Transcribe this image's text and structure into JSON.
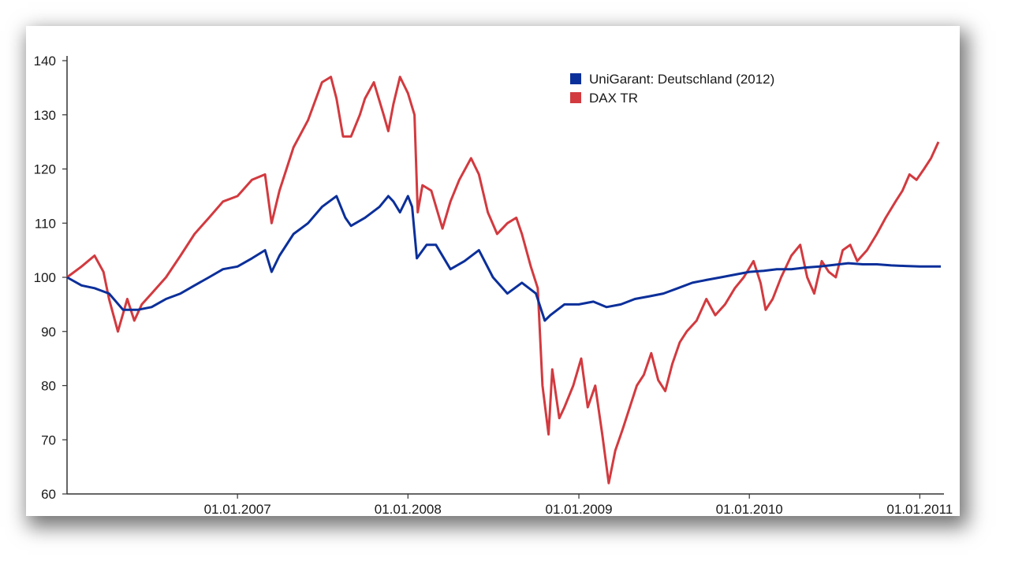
{
  "colors": {
    "unigarant": "#0b2f9a",
    "dax": "#d23a3f",
    "axis": "#333333"
  },
  "chart_data": {
    "type": "line",
    "title": "",
    "xlabel": "",
    "ylabel": "",
    "ylim": [
      60,
      140
    ],
    "xlim": [
      "2006-01-01",
      "2011-02-15"
    ],
    "grid": false,
    "legend_position": "top-right",
    "yticks": [
      60,
      70,
      80,
      90,
      100,
      110,
      120,
      130,
      140
    ],
    "xticks": [
      {
        "label": "01.01.2007",
        "date": "2007-01-01"
      },
      {
        "label": "01.01.2008",
        "date": "2008-01-01"
      },
      {
        "label": "01.01.2009",
        "date": "2009-01-01"
      },
      {
        "label": "01.01.2010",
        "date": "2010-01-01"
      },
      {
        "label": "01.01.2011",
        "date": "2011-01-01"
      }
    ],
    "series": [
      {
        "name": "UniGarant: Deutschland (2012)",
        "color": "#0b2f9a",
        "points": [
          [
            "2006-01-01",
            100
          ],
          [
            "2006-02-01",
            98.5
          ],
          [
            "2006-03-01",
            98
          ],
          [
            "2006-04-01",
            97
          ],
          [
            "2006-05-01",
            94
          ],
          [
            "2006-06-01",
            94
          ],
          [
            "2006-07-01",
            94.5
          ],
          [
            "2006-08-01",
            96
          ],
          [
            "2006-09-01",
            97
          ],
          [
            "2006-10-01",
            98.5
          ],
          [
            "2006-11-01",
            100
          ],
          [
            "2006-12-01",
            101.5
          ],
          [
            "2007-01-01",
            102
          ],
          [
            "2007-02-01",
            103.5
          ],
          [
            "2007-03-01",
            105
          ],
          [
            "2007-03-15",
            101
          ],
          [
            "2007-04-01",
            104
          ],
          [
            "2007-05-01",
            108
          ],
          [
            "2007-06-01",
            110
          ],
          [
            "2007-07-01",
            113
          ],
          [
            "2007-08-01",
            115
          ],
          [
            "2007-08-20",
            111
          ],
          [
            "2007-09-01",
            109.5
          ],
          [
            "2007-10-01",
            111
          ],
          [
            "2007-11-01",
            113
          ],
          [
            "2007-11-20",
            115
          ],
          [
            "2007-12-01",
            114
          ],
          [
            "2007-12-15",
            112
          ],
          [
            "2008-01-01",
            115
          ],
          [
            "2008-01-10",
            113
          ],
          [
            "2008-01-20",
            103.5
          ],
          [
            "2008-02-10",
            106
          ],
          [
            "2008-03-01",
            106
          ],
          [
            "2008-04-01",
            101.5
          ],
          [
            "2008-05-01",
            103
          ],
          [
            "2008-06-01",
            105
          ],
          [
            "2008-07-01",
            100
          ],
          [
            "2008-08-01",
            97
          ],
          [
            "2008-09-01",
            99
          ],
          [
            "2008-10-01",
            97
          ],
          [
            "2008-10-20",
            92
          ],
          [
            "2008-11-01",
            93
          ],
          [
            "2008-12-01",
            95
          ],
          [
            "2009-01-01",
            95
          ],
          [
            "2009-02-01",
            95.5
          ],
          [
            "2009-03-01",
            94.5
          ],
          [
            "2009-04-01",
            95
          ],
          [
            "2009-05-01",
            96
          ],
          [
            "2009-06-01",
            96.5
          ],
          [
            "2009-07-01",
            97
          ],
          [
            "2009-08-01",
            98
          ],
          [
            "2009-09-01",
            99
          ],
          [
            "2009-10-01",
            99.5
          ],
          [
            "2009-11-01",
            100
          ],
          [
            "2009-12-01",
            100.5
          ],
          [
            "2010-01-01",
            101
          ],
          [
            "2010-02-01",
            101.2
          ],
          [
            "2010-03-01",
            101.5
          ],
          [
            "2010-04-01",
            101.5
          ],
          [
            "2010-05-01",
            101.8
          ],
          [
            "2010-06-01",
            102
          ],
          [
            "2010-07-01",
            102.3
          ],
          [
            "2010-08-01",
            102.6
          ],
          [
            "2010-09-01",
            102.4
          ],
          [
            "2010-10-01",
            102.4
          ],
          [
            "2010-11-01",
            102.2
          ],
          [
            "2010-12-01",
            102.1
          ],
          [
            "2011-01-01",
            102
          ],
          [
            "2011-02-15",
            102
          ]
        ]
      },
      {
        "name": "DAX TR",
        "color": "#d23a3f",
        "points": [
          [
            "2006-01-01",
            100
          ],
          [
            "2006-02-01",
            102
          ],
          [
            "2006-03-01",
            104
          ],
          [
            "2006-03-20",
            101
          ],
          [
            "2006-04-01",
            96
          ],
          [
            "2006-04-20",
            90
          ],
          [
            "2006-05-10",
            96
          ],
          [
            "2006-05-25",
            92
          ],
          [
            "2006-06-10",
            95
          ],
          [
            "2006-07-01",
            97
          ],
          [
            "2006-08-01",
            100
          ],
          [
            "2006-09-01",
            104
          ],
          [
            "2006-10-01",
            108
          ],
          [
            "2006-11-01",
            111
          ],
          [
            "2006-12-01",
            114
          ],
          [
            "2007-01-01",
            115
          ],
          [
            "2007-02-01",
            118
          ],
          [
            "2007-03-01",
            119
          ],
          [
            "2007-03-15",
            110
          ],
          [
            "2007-04-01",
            116
          ],
          [
            "2007-05-01",
            124
          ],
          [
            "2007-06-01",
            129
          ],
          [
            "2007-07-01",
            136
          ],
          [
            "2007-07-20",
            137
          ],
          [
            "2007-08-01",
            133
          ],
          [
            "2007-08-15",
            126
          ],
          [
            "2007-09-01",
            126
          ],
          [
            "2007-09-20",
            130
          ],
          [
            "2007-10-01",
            133
          ],
          [
            "2007-10-20",
            136
          ],
          [
            "2007-11-10",
            130
          ],
          [
            "2007-11-20",
            127
          ],
          [
            "2007-12-01",
            132
          ],
          [
            "2007-12-15",
            137
          ],
          [
            "2008-01-01",
            134
          ],
          [
            "2008-01-15",
            130
          ],
          [
            "2008-01-22",
            112
          ],
          [
            "2008-02-01",
            117
          ],
          [
            "2008-02-20",
            116
          ],
          [
            "2008-03-15",
            109
          ],
          [
            "2008-04-01",
            114
          ],
          [
            "2008-04-20",
            118
          ],
          [
            "2008-05-15",
            122
          ],
          [
            "2008-06-01",
            119
          ],
          [
            "2008-06-20",
            112
          ],
          [
            "2008-07-10",
            108
          ],
          [
            "2008-08-01",
            110
          ],
          [
            "2008-08-20",
            111
          ],
          [
            "2008-09-01",
            108
          ],
          [
            "2008-09-20",
            102
          ],
          [
            "2008-10-05",
            98
          ],
          [
            "2008-10-15",
            80
          ],
          [
            "2008-10-28",
            71
          ],
          [
            "2008-11-05",
            83
          ],
          [
            "2008-11-20",
            74
          ],
          [
            "2008-12-01",
            76
          ],
          [
            "2008-12-20",
            80
          ],
          [
            "2009-01-06",
            85
          ],
          [
            "2009-01-20",
            76
          ],
          [
            "2009-02-05",
            80
          ],
          [
            "2009-02-20",
            71
          ],
          [
            "2009-03-06",
            62
          ],
          [
            "2009-03-20",
            68
          ],
          [
            "2009-04-05",
            72
          ],
          [
            "2009-04-20",
            76
          ],
          [
            "2009-05-05",
            80
          ],
          [
            "2009-05-20",
            82
          ],
          [
            "2009-06-05",
            86
          ],
          [
            "2009-06-20",
            81
          ],
          [
            "2009-07-05",
            79
          ],
          [
            "2009-07-20",
            84
          ],
          [
            "2009-08-05",
            88
          ],
          [
            "2009-08-20",
            90
          ],
          [
            "2009-09-10",
            92
          ],
          [
            "2009-10-01",
            96
          ],
          [
            "2009-10-20",
            93
          ],
          [
            "2009-11-10",
            95
          ],
          [
            "2009-12-01",
            98
          ],
          [
            "2009-12-20",
            100
          ],
          [
            "2010-01-10",
            103
          ],
          [
            "2010-01-25",
            99
          ],
          [
            "2010-02-05",
            94
          ],
          [
            "2010-02-20",
            96
          ],
          [
            "2010-03-10",
            100
          ],
          [
            "2010-04-01",
            104
          ],
          [
            "2010-04-20",
            106
          ],
          [
            "2010-05-05",
            100
          ],
          [
            "2010-05-20",
            97
          ],
          [
            "2010-06-05",
            103
          ],
          [
            "2010-06-20",
            101
          ],
          [
            "2010-07-05",
            100
          ],
          [
            "2010-07-20",
            105
          ],
          [
            "2010-08-05",
            106
          ],
          [
            "2010-08-20",
            103
          ],
          [
            "2010-09-10",
            105
          ],
          [
            "2010-10-01",
            108
          ],
          [
            "2010-10-20",
            111
          ],
          [
            "2010-11-10",
            114
          ],
          [
            "2010-11-25",
            116
          ],
          [
            "2010-12-10",
            119
          ],
          [
            "2010-12-25",
            118
          ],
          [
            "2011-01-10",
            120
          ],
          [
            "2011-01-25",
            122
          ],
          [
            "2011-02-10",
            125
          ]
        ]
      }
    ]
  }
}
